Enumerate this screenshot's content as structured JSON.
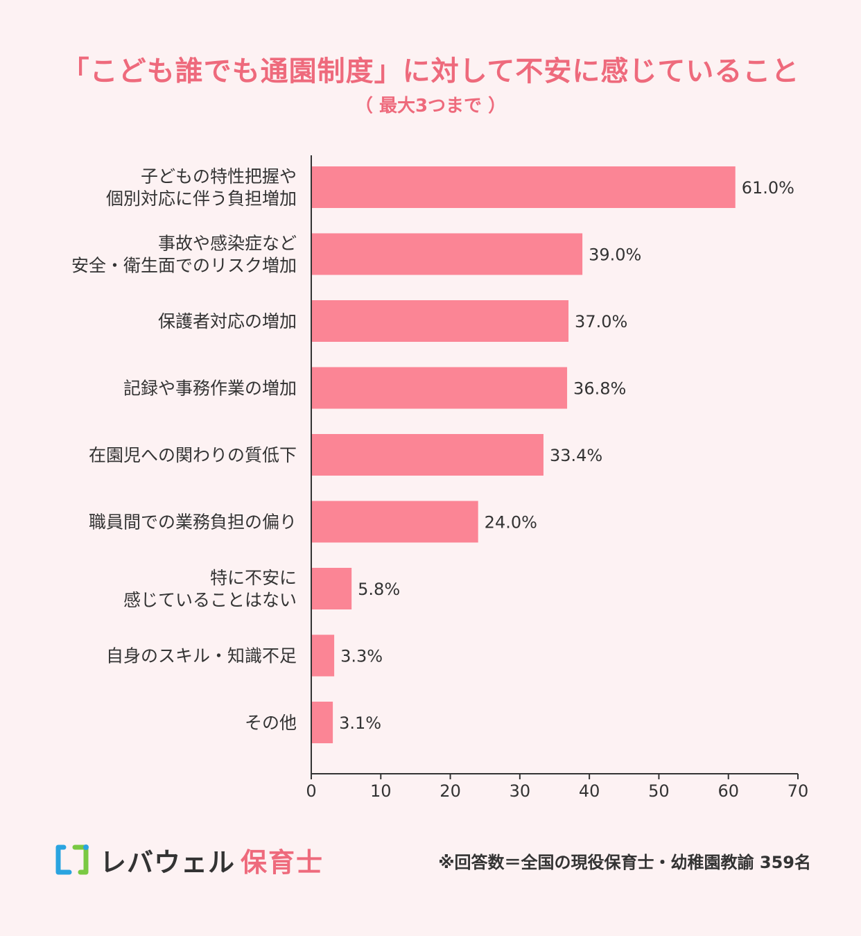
{
  "header": {
    "title": "「こども誰でも通園制度」に対して不安に感じていること",
    "subtitle": "（ 最大3つまで ）"
  },
  "chart_data": {
    "type": "bar",
    "orientation": "horizontal",
    "categories": [
      [
        "子どもの特性把握や",
        "個別対応に伴う負担増加"
      ],
      [
        "事故や感染症など",
        "安全・衛生面でのリスク増加"
      ],
      [
        "保護者対応の増加"
      ],
      [
        "記録や事務作業の増加"
      ],
      [
        "在園児への関わりの質低下"
      ],
      [
        "職員間での業務負担の偏り"
      ],
      [
        "特に不安に",
        "感じていることはない"
      ],
      [
        "自身のスキル・知識不足"
      ],
      [
        "その他"
      ]
    ],
    "values": [
      61.0,
      39.0,
      37.0,
      36.8,
      33.4,
      24.0,
      5.8,
      3.3,
      3.1
    ],
    "value_labels": [
      "61.0%",
      "39.0%",
      "37.0%",
      "36.8%",
      "33.4%",
      "24.0%",
      "5.8%",
      "3.3%",
      "3.1%"
    ],
    "xlim": [
      0,
      70
    ],
    "xticks": [
      "0",
      "10",
      "20",
      "30",
      "40",
      "50",
      "60",
      "70"
    ],
    "grid": false,
    "bar_color": "#fb8595",
    "axis_color": "#333333"
  },
  "footer": {
    "brand_main": "レバウェル",
    "brand_accent": "保育士",
    "note": "※回答数＝全国の現役保育士・幼稚園教諭 359名",
    "logo_colors": [
      "#2aa4e0",
      "#7ac943"
    ]
  }
}
